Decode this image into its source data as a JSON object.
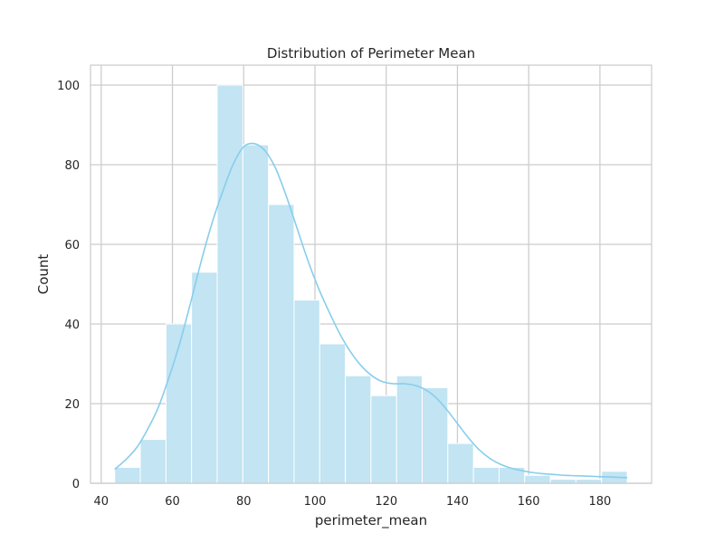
{
  "chart_data": {
    "type": "bar",
    "title": "Distribution of Perimeter Mean",
    "xlabel": "perimeter_mean",
    "ylabel": "Count",
    "xlim": [
      37.0,
      194.5
    ],
    "ylim": [
      0,
      105
    ],
    "x_ticks": [
      40,
      60,
      80,
      100,
      120,
      140,
      160,
      180
    ],
    "y_ticks": [
      0,
      20,
      40,
      60,
      80,
      100
    ],
    "grid": true,
    "bin_edges": [
      43.79,
      50.98,
      58.18,
      65.37,
      72.56,
      79.76,
      86.95,
      94.14,
      101.34,
      108.53,
      115.72,
      122.92,
      130.11,
      137.3,
      144.5,
      151.69,
      158.88,
      166.08,
      173.27,
      180.46,
      187.66
    ],
    "counts": [
      4,
      11,
      40,
      53,
      100,
      85,
      70,
      46,
      35,
      27,
      22,
      27,
      24,
      10,
      4,
      4,
      2,
      1,
      1,
      3
    ],
    "kde": {
      "x": [
        43.79,
        47,
        50,
        53,
        56,
        59,
        62,
        65,
        68,
        71,
        74,
        77,
        80,
        83,
        86,
        89,
        92,
        95,
        98,
        101,
        104,
        107,
        110,
        113,
        116,
        119,
        122,
        125,
        128,
        131,
        134,
        137,
        140,
        143,
        146,
        149,
        152,
        155,
        158,
        161,
        164,
        167,
        170,
        173,
        176,
        179,
        182,
        185,
        187.66
      ],
      "y": [
        3.5,
        6,
        9,
        13.5,
        19,
        26.5,
        35,
        45,
        55.5,
        65,
        73,
        80,
        84.5,
        85.3,
        83.5,
        79,
        72,
        64,
        56,
        49,
        43,
        37.5,
        33,
        29.5,
        27,
        25.5,
        25,
        25,
        24.6,
        23.5,
        21.5,
        18.5,
        15,
        11.5,
        8.5,
        6.3,
        4.8,
        3.8,
        3.2,
        2.7,
        2.4,
        2.2,
        2.0,
        1.9,
        1.8,
        1.7,
        1.6,
        1.5,
        1.4
      ]
    },
    "colors": {
      "bar_fill": "#c2e4f3",
      "bar_edge": "#ffffff",
      "kde_line": "#87ceeb",
      "grid": "#cccccc",
      "text": "#262626"
    }
  }
}
